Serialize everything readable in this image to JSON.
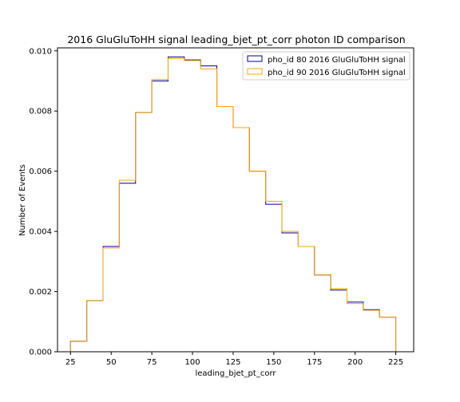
{
  "chart_data": {
    "type": "step-histogram",
    "title": "2016 GluGluToHH signal leading_bjet_pt_corr photon ID comparison",
    "xlabel": "leading_bjet_pt_corr",
    "ylabel": "Number of Events",
    "xlim": [
      17,
      236
    ],
    "ylim": [
      0,
      0.0101
    ],
    "xticks": [
      25,
      50,
      75,
      100,
      125,
      150,
      175,
      200,
      225
    ],
    "yticks": [
      0.0,
      0.002,
      0.004,
      0.006,
      0.008,
      0.01
    ],
    "ytick_labels": [
      "0.000",
      "0.002",
      "0.004",
      "0.006",
      "0.008",
      "0.010"
    ],
    "bin_edges": [
      25,
      35,
      45,
      55,
      65,
      75,
      85,
      95,
      105,
      115,
      125,
      135,
      145,
      155,
      165,
      175,
      185,
      195,
      205,
      215,
      225
    ],
    "legend_position": "top-right",
    "grid": false,
    "series": [
      {
        "name": "pho_id 80 2016 GluGluToHH signal",
        "color": "#00008b",
        "values": [
          0.00035,
          0.0017,
          0.0035,
          0.0056,
          0.00795,
          0.009,
          0.0098,
          0.0097,
          0.0095,
          0.00815,
          0.00745,
          0.006,
          0.0049,
          0.00395,
          0.0035,
          0.00255,
          0.00205,
          0.00165,
          0.0014,
          0.00115
        ]
      },
      {
        "name": "pho_id 90 2016 GluGluToHH signal",
        "color": "#ffa500",
        "values": [
          0.00035,
          0.0017,
          0.00345,
          0.0057,
          0.00795,
          0.00905,
          0.00975,
          0.00968,
          0.0094,
          0.00815,
          0.00745,
          0.006,
          0.005,
          0.004,
          0.0035,
          0.00255,
          0.0021,
          0.0016,
          0.00138,
          0.00115
        ]
      }
    ]
  }
}
